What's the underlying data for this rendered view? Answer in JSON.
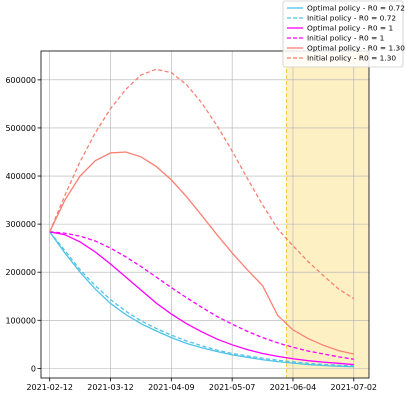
{
  "chart_data": {
    "type": "line",
    "title": "",
    "xlabel": "",
    "ylabel": "",
    "grid": true,
    "legend_position": "top-right",
    "x_tick_labels": [
      "2021-02-12",
      "2021-03-12",
      "2021-04-09",
      "2021-05-07",
      "2021-06-04",
      "2021-07-02"
    ],
    "y_tick_labels": [
      "0",
      "100000",
      "200000",
      "300000",
      "400000",
      "500000",
      "600000"
    ],
    "xlim": [
      "2021-02-08",
      "2021-07-09"
    ],
    "ylim": [
      -20000,
      660000
    ],
    "highlight_region": {
      "start": "2021-06-01",
      "end": "2021-07-09",
      "color": "#fdf1c4",
      "border_color": "#f5c842"
    },
    "x": [
      "2021-02-12",
      "2021-02-19",
      "2021-02-26",
      "2021-03-05",
      "2021-03-12",
      "2021-03-19",
      "2021-03-26",
      "2021-04-02",
      "2021-04-09",
      "2021-04-16",
      "2021-04-23",
      "2021-04-30",
      "2021-05-07",
      "2021-05-14",
      "2021-05-21",
      "2021-05-28",
      "2021-06-04",
      "2021-06-11",
      "2021-06-18",
      "2021-06-25",
      "2021-07-02"
    ],
    "series": [
      {
        "name": "Optimal policy - R0 = 0.72",
        "color": "#4fc3e8",
        "dashed": false,
        "values": [
          284000,
          240000,
          200000,
          165000,
          135000,
          112000,
          93000,
          78000,
          64000,
          52000,
          43000,
          35000,
          28000,
          23000,
          18000,
          14000,
          11000,
          8000,
          6000,
          4500,
          3500
        ]
      },
      {
        "name": "Initial policy - R0 = 0.72",
        "color": "#4fc3e8",
        "dashed": true,
        "values": [
          284000,
          245000,
          205000,
          172000,
          143000,
          119000,
          99000,
          83000,
          69000,
          57000,
          47000,
          38000,
          31000,
          26000,
          21000,
          17000,
          13500,
          10500,
          8200,
          6500,
          5200
        ]
      },
      {
        "name": "Optimal policy - R0 = 1",
        "color": "#ff00ff",
        "dashed": false,
        "values": [
          284000,
          278000,
          263000,
          242000,
          217000,
          190000,
          163000,
          136000,
          113000,
          93000,
          76000,
          61000,
          49000,
          39000,
          31000,
          25000,
          20000,
          16000,
          13000,
          10500,
          8000
        ]
      },
      {
        "name": "Initial policy - R0 = 1",
        "color": "#ff00ff",
        "dashed": true,
        "values": [
          284000,
          281000,
          275000,
          265000,
          250000,
          232000,
          212000,
          190000,
          168000,
          147000,
          127000,
          108000,
          92000,
          77000,
          64000,
          53000,
          44000,
          36000,
          30000,
          24000,
          19000
        ]
      },
      {
        "name": "Optimal policy - R0 = 1.30",
        "color": "#fa8072",
        "dashed": false,
        "values": [
          284000,
          350000,
          400000,
          432000,
          448000,
          450000,
          440000,
          420000,
          392000,
          357000,
          318000,
          278000,
          240000,
          205000,
          172000,
          110000,
          80000,
          62000,
          48000,
          37000,
          30000
        ]
      },
      {
        "name": "Initial policy - R0 = 1.30",
        "color": "#fa8072",
        "dashed": true,
        "values": [
          284000,
          360000,
          430000,
          490000,
          540000,
          580000,
          610000,
          622000,
          615000,
          590000,
          552000,
          505000,
          452000,
          395000,
          340000,
          290000,
          255000,
          222000,
          193000,
          165000,
          145000
        ]
      }
    ]
  }
}
